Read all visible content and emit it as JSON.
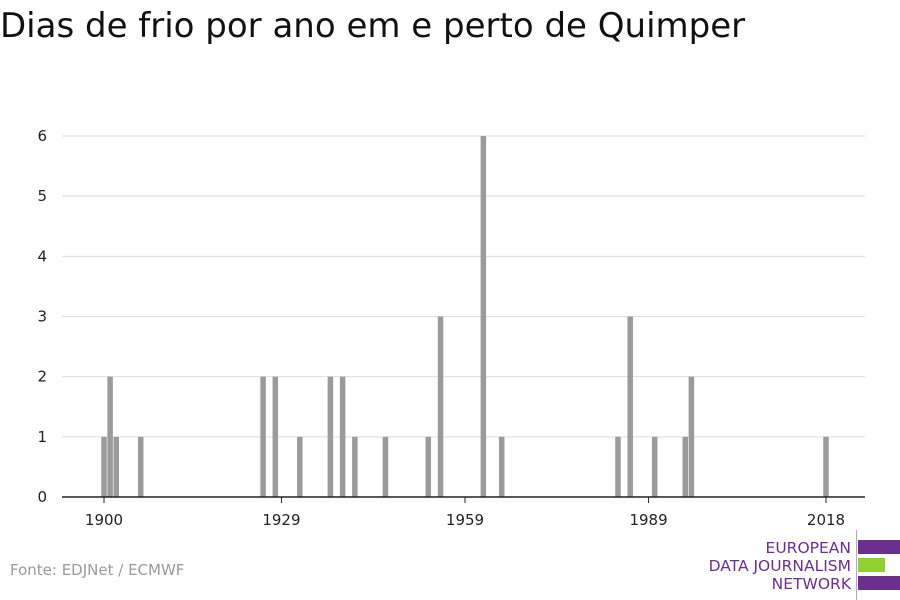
{
  "title": "Dias de frio por ano em e perto de Quimper",
  "source": "Fonte: EDJNet / ECMWF",
  "logo": {
    "lines": [
      "EUROPEAN",
      "DATA JOURNALISM",
      "NETWORK"
    ],
    "colors": {
      "text": "#6b2f8f",
      "bar_primary": "#6b2f8f",
      "bar_accent": "#8fd12f"
    }
  },
  "colors": {
    "bar": "#9b9b9b",
    "grid": "#dddddd",
    "axis": "#222222",
    "text": "#222222"
  },
  "chart_data": {
    "type": "bar",
    "title": "Dias de frio por ano em e perto de Quimper",
    "xlabel": "",
    "ylabel": "",
    "ylim": [
      0,
      6
    ],
    "yticks": [
      0,
      1,
      2,
      3,
      4,
      5,
      6
    ],
    "xlim": [
      1900,
      2018
    ],
    "xticks": [
      1900,
      1929,
      1959,
      1989,
      2018
    ],
    "grid": true,
    "legend": "none",
    "x": [
      1900,
      1901,
      1902,
      1906,
      1926,
      1928,
      1932,
      1937,
      1939,
      1941,
      1946,
      1953,
      1955,
      1962,
      1965,
      1984,
      1986,
      1990,
      1995,
      1996,
      2018
    ],
    "values": [
      1,
      2,
      1,
      1,
      2,
      2,
      1,
      2,
      2,
      1,
      1,
      1,
      3,
      6,
      1,
      1,
      3,
      1,
      1,
      2,
      1
    ]
  }
}
